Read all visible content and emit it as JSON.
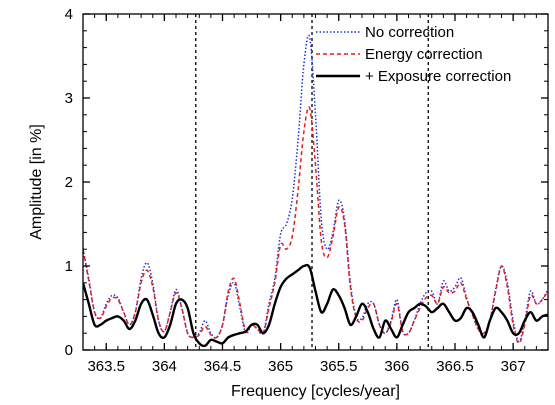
{
  "chart_data": {
    "type": "line",
    "xlabel": "Frequency [cycles/year]",
    "ylabel": "Amplitude [in %]",
    "xlim": [
      363.3,
      367.3
    ],
    "ylim": [
      0,
      4
    ],
    "x_ticks": [
      363.5,
      364,
      364.5,
      365,
      365.5,
      366,
      366.5,
      367
    ],
    "x_tick_labels": [
      "363.5",
      "364",
      "364.5",
      "365",
      "365.5",
      "366",
      "366.5",
      "367"
    ],
    "y_ticks": [
      0,
      1,
      2,
      3,
      4
    ],
    "y_tick_labels": [
      "0",
      "1",
      "2",
      "3",
      "4"
    ],
    "x_minor_step": 0.1,
    "y_minor_step": 0.2,
    "grid": false,
    "legend_position": "top-right",
    "vertical_reference_lines": [
      364.27,
      365.27,
      366.27
    ],
    "series": [
      {
        "name": "No correction",
        "color": "#1c2fd6",
        "style": "dotted",
        "x": [
          363.3,
          363.35,
          363.4,
          363.45,
          363.5,
          363.55,
          363.6,
          363.65,
          363.7,
          363.75,
          363.8,
          363.85,
          363.9,
          363.95,
          364.0,
          364.05,
          364.1,
          364.15,
          364.2,
          364.25,
          364.3,
          364.35,
          364.4,
          364.45,
          364.5,
          364.55,
          364.6,
          364.65,
          364.7,
          364.75,
          364.8,
          364.85,
          364.9,
          364.95,
          365.0,
          365.05,
          365.1,
          365.15,
          365.2,
          365.25,
          365.3,
          365.35,
          365.4,
          365.45,
          365.5,
          365.55,
          365.6,
          365.65,
          365.7,
          365.75,
          365.8,
          365.85,
          365.9,
          365.95,
          366.0,
          366.05,
          366.1,
          366.15,
          366.2,
          366.25,
          366.3,
          366.35,
          366.4,
          366.45,
          366.5,
          366.55,
          366.6,
          366.65,
          366.7,
          366.75,
          366.8,
          366.85,
          366.9,
          366.95,
          367.0,
          367.05,
          367.1,
          367.15,
          367.2,
          367.25,
          367.3
        ],
        "values": [
          1.2,
          0.85,
          0.45,
          0.38,
          0.55,
          0.65,
          0.62,
          0.45,
          0.3,
          0.45,
          0.85,
          1.04,
          0.8,
          0.35,
          0.22,
          0.45,
          0.72,
          0.5,
          0.2,
          0.15,
          0.2,
          0.35,
          0.2,
          0.15,
          0.3,
          0.65,
          0.8,
          0.5,
          0.2,
          0.3,
          0.25,
          0.2,
          0.55,
          0.85,
          1.38,
          1.5,
          1.8,
          2.5,
          3.4,
          3.72,
          2.8,
          1.55,
          1.2,
          1.4,
          1.78,
          1.55,
          0.8,
          0.4,
          0.38,
          0.55,
          0.55,
          0.3,
          0.2,
          0.35,
          0.6,
          0.22,
          0.2,
          0.35,
          0.55,
          0.68,
          0.7,
          0.55,
          0.82,
          0.7,
          0.75,
          0.86,
          0.62,
          0.42,
          0.25,
          0.2,
          0.35,
          0.72,
          1.0,
          0.8,
          0.35,
          0.1,
          0.35,
          0.7,
          0.55,
          0.6,
          0.72
        ]
      },
      {
        "name": "Energy correction",
        "color": "#e02020",
        "style": "dashed",
        "x": [
          363.3,
          363.35,
          363.4,
          363.45,
          363.5,
          363.55,
          363.6,
          363.65,
          363.7,
          363.75,
          363.8,
          363.85,
          363.9,
          363.95,
          364.0,
          364.05,
          364.1,
          364.15,
          364.2,
          364.25,
          364.3,
          364.35,
          364.4,
          364.45,
          364.5,
          364.55,
          364.6,
          364.65,
          364.7,
          364.75,
          364.8,
          364.85,
          364.9,
          364.95,
          365.0,
          365.05,
          365.1,
          365.15,
          365.2,
          365.25,
          365.3,
          365.35,
          365.4,
          365.45,
          365.5,
          365.55,
          365.6,
          365.65,
          365.7,
          365.75,
          365.8,
          365.85,
          365.9,
          365.95,
          366.0,
          366.05,
          366.1,
          366.15,
          366.2,
          366.25,
          366.3,
          366.35,
          366.4,
          366.45,
          366.5,
          366.55,
          366.6,
          366.65,
          366.7,
          366.75,
          366.8,
          366.85,
          366.9,
          366.95,
          367.0,
          367.05,
          367.1,
          367.15,
          367.2,
          367.25,
          367.3
        ],
        "values": [
          1.2,
          0.82,
          0.45,
          0.38,
          0.52,
          0.62,
          0.6,
          0.45,
          0.3,
          0.45,
          0.8,
          0.95,
          0.75,
          0.35,
          0.22,
          0.45,
          0.68,
          0.5,
          0.2,
          0.15,
          0.18,
          0.28,
          0.18,
          0.15,
          0.3,
          0.7,
          0.85,
          0.55,
          0.22,
          0.3,
          0.25,
          0.2,
          0.5,
          0.8,
          1.25,
          1.2,
          1.35,
          1.9,
          2.6,
          2.88,
          2.2,
          1.3,
          1.1,
          1.35,
          1.7,
          1.5,
          0.75,
          0.38,
          0.35,
          0.5,
          0.55,
          0.3,
          0.2,
          0.33,
          0.55,
          0.22,
          0.2,
          0.35,
          0.5,
          0.62,
          0.65,
          0.55,
          0.75,
          0.68,
          0.7,
          0.8,
          0.6,
          0.42,
          0.25,
          0.2,
          0.35,
          0.7,
          1.0,
          0.75,
          0.3,
          0.08,
          0.3,
          0.65,
          0.55,
          0.6,
          0.7
        ]
      },
      {
        "name": "+ Exposure correction",
        "color": "#000000",
        "style": "solid",
        "x": [
          363.3,
          363.35,
          363.4,
          363.45,
          363.5,
          363.55,
          363.6,
          363.65,
          363.7,
          363.75,
          363.8,
          363.85,
          363.9,
          363.95,
          364.0,
          364.05,
          364.1,
          364.15,
          364.2,
          364.25,
          364.3,
          364.35,
          364.4,
          364.45,
          364.5,
          364.55,
          364.6,
          364.65,
          364.7,
          364.75,
          364.8,
          364.85,
          364.9,
          364.95,
          365.0,
          365.05,
          365.1,
          365.15,
          365.2,
          365.25,
          365.3,
          365.35,
          365.4,
          365.45,
          365.5,
          365.55,
          365.6,
          365.65,
          365.7,
          365.75,
          365.8,
          365.85,
          365.9,
          365.95,
          366.0,
          366.05,
          366.1,
          366.15,
          366.2,
          366.25,
          366.3,
          366.35,
          366.4,
          366.45,
          366.5,
          366.55,
          366.6,
          366.65,
          366.7,
          366.75,
          366.8,
          366.85,
          366.9,
          366.95,
          367.0,
          367.05,
          367.1,
          367.15,
          367.2,
          367.25,
          367.3
        ],
        "values": [
          0.8,
          0.55,
          0.3,
          0.3,
          0.35,
          0.38,
          0.4,
          0.35,
          0.25,
          0.35,
          0.55,
          0.6,
          0.42,
          0.2,
          0.15,
          0.3,
          0.55,
          0.6,
          0.5,
          0.2,
          0.08,
          0.05,
          0.12,
          0.1,
          0.08,
          0.15,
          0.18,
          0.2,
          0.22,
          0.3,
          0.3,
          0.2,
          0.3,
          0.55,
          0.75,
          0.85,
          0.9,
          0.95,
          1.0,
          0.98,
          0.7,
          0.45,
          0.55,
          0.72,
          0.65,
          0.5,
          0.3,
          0.4,
          0.55,
          0.45,
          0.25,
          0.15,
          0.35,
          0.25,
          0.15,
          0.3,
          0.45,
          0.5,
          0.55,
          0.52,
          0.45,
          0.5,
          0.55,
          0.45,
          0.35,
          0.38,
          0.5,
          0.45,
          0.3,
          0.15,
          0.35,
          0.5,
          0.45,
          0.35,
          0.2,
          0.2,
          0.35,
          0.45,
          0.35,
          0.4,
          0.42
        ]
      }
    ]
  }
}
